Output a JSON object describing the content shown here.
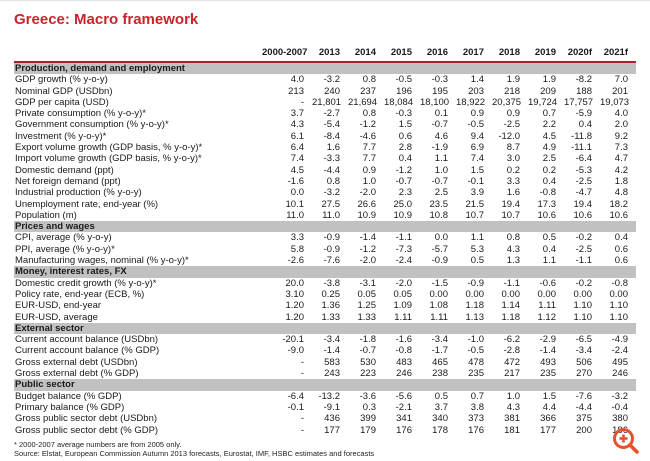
{
  "title": "Greece: Macro framework",
  "colors": {
    "title_red": "#c9242b",
    "header_rule_red": "#a8232b",
    "section_bar_gray": "#c1c1c1",
    "zoom_icon_orange": "#e8512b"
  },
  "icons": {
    "zoom_in": "magnifier-plus-icon"
  },
  "table": {
    "columns": [
      "2000-2007",
      "2013",
      "2014",
      "2015",
      "2016",
      "2017",
      "2018",
      "2019",
      "2020f",
      "2021f"
    ],
    "sections": [
      {
        "label": "Production, demand and employment",
        "rows": [
          {
            "label": "GDP growth (% y-o-y)",
            "values": [
              "4.0",
              "-3.2",
              "0.8",
              "-0.5",
              "-0.3",
              "1.4",
              "1.9",
              "1.9",
              "-8.2",
              "7.0"
            ]
          },
          {
            "label": "Nominal GDP (USDbn)",
            "values": [
              "213",
              "240",
              "237",
              "196",
              "195",
              "203",
              "218",
              "209",
              "188",
              "201"
            ]
          },
          {
            "label": "GDP per capita (USD)",
            "values": [
              "-",
              "21,801",
              "21,694",
              "18,084",
              "18,100",
              "18,922",
              "20,375",
              "19,724",
              "17,757",
              "19,073"
            ]
          },
          {
            "label": "Private consumption (% y-o-y)*",
            "values": [
              "3.7",
              "-2.7",
              "0.8",
              "-0.3",
              "0.1",
              "0.9",
              "0.9",
              "0.7",
              "-5.9",
              "4.0"
            ]
          },
          {
            "label": "Government consumption (% y-o-y)*",
            "values": [
              "4.3",
              "-5.4",
              "-1.2",
              "1.5",
              "-0.7",
              "-0.5",
              "-2.5",
              "2.2",
              "0.4",
              "2.0"
            ]
          },
          {
            "label": "Investment (% y-o-y)*",
            "values": [
              "6.1",
              "-8.4",
              "-4.6",
              "0.6",
              "4.6",
              "9.4",
              "-12.0",
              "4.5",
              "-11.8",
              "9.2"
            ]
          },
          {
            "label": "Export volume growth (GDP basis, % y-o-y)*",
            "values": [
              "6.4",
              "1.6",
              "7.7",
              "2.8",
              "-1.9",
              "6.9",
              "8.7",
              "4.9",
              "-11.1",
              "7.3"
            ]
          },
          {
            "label": "Import volume growth (GDP basis, % y-o-y)*",
            "values": [
              "7.4",
              "-3.3",
              "7.7",
              "0.4",
              "1.1",
              "7.4",
              "3.0",
              "2.5",
              "-6.4",
              "4.7"
            ]
          },
          {
            "label": "Domestic demand (ppt)",
            "values": [
              "4.5",
              "-4.4",
              "0.9",
              "-1.2",
              "1.0",
              "1.5",
              "0.2",
              "0.2",
              "-5.3",
              "4.2"
            ]
          },
          {
            "label": "Net foreign demand (ppt)",
            "values": [
              "-1.6",
              "0.8",
              "1.0",
              "-0.7",
              "-0.7",
              "-0.1",
              "3.3",
              "0.4",
              "-2.5",
              "1.8"
            ]
          },
          {
            "label": "Industrial production (% y-o-y)",
            "values": [
              "0.0",
              "-3.2",
              "-2.0",
              "2.3",
              "2.5",
              "3.9",
              "1.6",
              "-0.8",
              "-4.7",
              "4.8"
            ]
          },
          {
            "label": "Unemployment rate, end-year (%)",
            "values": [
              "10.1",
              "27.5",
              "26.6",
              "25.0",
              "23.5",
              "21.5",
              "19.4",
              "17.3",
              "19.4",
              "18.2"
            ]
          },
          {
            "label": "Population (m)",
            "values": [
              "11.0",
              "11.0",
              "10.9",
              "10.9",
              "10.8",
              "10.7",
              "10.7",
              "10.6",
              "10.6",
              "10.6"
            ]
          }
        ]
      },
      {
        "label": "Prices and wages",
        "rows": [
          {
            "label": "CPI, average (% y-o-y)",
            "values": [
              "3.3",
              "-0.9",
              "-1.4",
              "-1.1",
              "0.0",
              "1.1",
              "0.8",
              "0.5",
              "-0.2",
              "0.4"
            ]
          },
          {
            "label": "PPI, average (% y-o-y)*",
            "values": [
              "5.8",
              "-0.9",
              "-1.2",
              "-7.3",
              "-5.7",
              "5.3",
              "4.3",
              "0.4",
              "-2.5",
              "0.6"
            ]
          },
          {
            "label": "Manufacturing wages, nominal (% y-o-y)*",
            "values": [
              "-2.6",
              "-7.6",
              "-2.0",
              "-2.4",
              "-0.9",
              "0.5",
              "1.3",
              "1.1",
              "-1.1",
              "0.6"
            ]
          }
        ]
      },
      {
        "label": "Money, interest rates, FX",
        "rows": [
          {
            "label": "Domestic credit growth (% y-o-y)*",
            "values": [
              "20.0",
              "-3.8",
              "-3.1",
              "-2.0",
              "-1.5",
              "-0.9",
              "-1.1",
              "-0.6",
              "-0.2",
              "-0.8"
            ]
          },
          {
            "label": "Policy rate, end-year (ECB, %)",
            "values": [
              "3.10",
              "0.25",
              "0.05",
              "0.05",
              "0.00",
              "0.00",
              "0.00",
              "0.00",
              "0.00",
              "0.00"
            ]
          },
          {
            "label": "EUR-USD, end-year",
            "values": [
              "1.20",
              "1.36",
              "1.25",
              "1.09",
              "1.08",
              "1.18",
              "1.14",
              "1.11",
              "1.10",
              "1.10"
            ]
          },
          {
            "label": "EUR-USD, average",
            "values": [
              "1.20",
              "1.33",
              "1.33",
              "1.11",
              "1.11",
              "1.13",
              "1.18",
              "1.12",
              "1.10",
              "1.10"
            ]
          }
        ]
      },
      {
        "label": "External sector",
        "rows": [
          {
            "label": "Current account balance (USDbn)",
            "values": [
              "-20.1",
              "-3.4",
              "-1.8",
              "-1.6",
              "-3.4",
              "-1.0",
              "-6.2",
              "-2.9",
              "-6.5",
              "-4.9"
            ]
          },
          {
            "label": "Current account balance (% GDP)",
            "values": [
              "-9.0",
              "-1.4",
              "-0.7",
              "-0.8",
              "-1.7",
              "-0.5",
              "-2.8",
              "-1.4",
              "-3.4",
              "-2.4"
            ]
          },
          {
            "label": "Gross external debt (USDbn)",
            "values": [
              "-",
              "583",
              "530",
              "483",
              "465",
              "478",
              "472",
              "493",
              "506",
              "495"
            ]
          },
          {
            "label": "Gross external debt (% GDP)",
            "values": [
              "-",
              "243",
              "223",
              "246",
              "238",
              "235",
              "217",
              "235",
              "270",
              "246"
            ]
          }
        ]
      },
      {
        "label": "Public sector",
        "rows": [
          {
            "label": "Budget balance (% GDP)",
            "values": [
              "-6.4",
              "-13.2",
              "-3.6",
              "-5.6",
              "0.5",
              "0.7",
              "1.0",
              "1.5",
              "-7.6",
              "-3.2"
            ]
          },
          {
            "label": "Primary balance (% GDP)",
            "values": [
              "-0.1",
              "-9.1",
              "0.3",
              "-2.1",
              "3.7",
              "3.8",
              "4.3",
              "4.4",
              "-4.4",
              "-0.4"
            ]
          },
          {
            "label": "Gross public sector debt (USDbn)",
            "values": [
              "-",
              "436",
              "399",
              "341",
              "340",
              "373",
              "381",
              "366",
              "375",
              "380"
            ]
          },
          {
            "label": "Gross public sector debt (% GDP)",
            "values": [
              "-",
              "177",
              "179",
              "176",
              "178",
              "176",
              "181",
              "177",
              "200",
              "186"
            ]
          }
        ]
      }
    ]
  },
  "footnotes": [
    "* 2000-2007 average numbers are from 2005 only.",
    "Source: Elstat, European Commission Autumn 2013 forecasts, Eurostat, IMF, HSBC estimates and forecasts"
  ]
}
